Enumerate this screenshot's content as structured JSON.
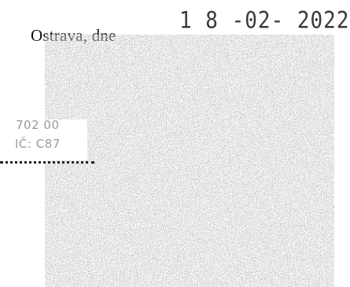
{
  "document": {
    "place_label": "Ostrava, dne",
    "date_stamp": "1 8 -02- 2022",
    "postal_code": "702 00",
    "id_fragment": "IČ: C87"
  }
}
